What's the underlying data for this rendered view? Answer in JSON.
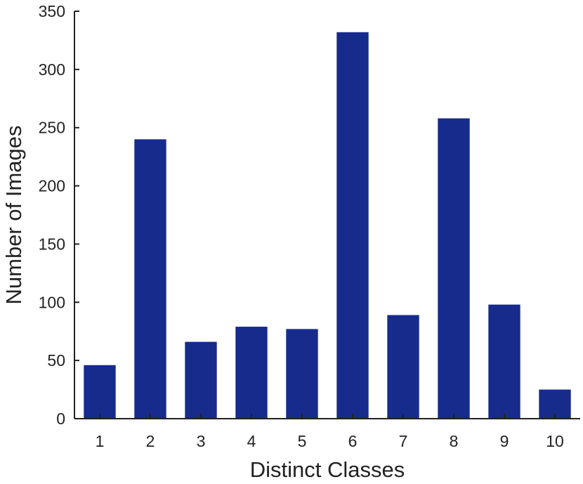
{
  "chart_data": {
    "type": "bar",
    "categories": [
      "1",
      "2",
      "3",
      "4",
      "5",
      "6",
      "7",
      "8",
      "9",
      "10"
    ],
    "values": [
      46,
      240,
      66,
      79,
      77,
      332,
      89,
      258,
      98,
      25
    ],
    "title": "",
    "xlabel": "Distinct Classes",
    "ylabel": "Number of Images",
    "ylim": [
      0,
      350
    ],
    "yticks": [
      0,
      50,
      100,
      150,
      200,
      250,
      300,
      350
    ],
    "bar_color": "#172b8c",
    "axis_color": "#222222",
    "grid": false,
    "legend": "none"
  }
}
